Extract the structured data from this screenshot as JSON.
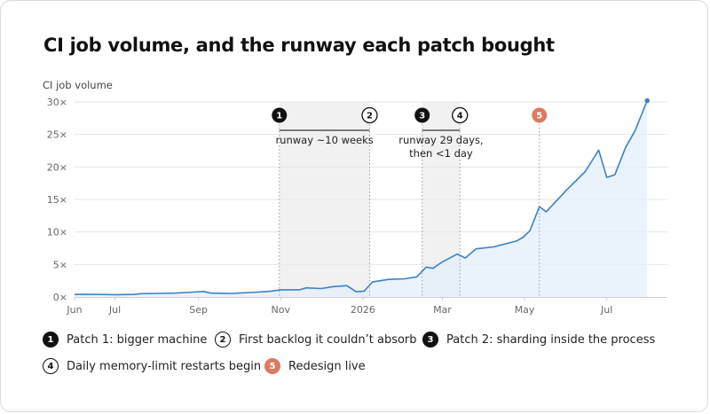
{
  "title": "CI job volume, and the runway each patch bought",
  "chart_data": {
    "type": "area",
    "ylabel": "CI job volume",
    "y_unit": "×",
    "ylim": [
      0,
      30
    ],
    "yticks": [
      0,
      5,
      10,
      15,
      20,
      25,
      30
    ],
    "ytick_labels": [
      "0×",
      "5×",
      "10×",
      "15×",
      "20×",
      "25×",
      "30×"
    ],
    "xlim": [
      "2025-06-01",
      "2026-08-15"
    ],
    "xticks": [
      {
        "date": "2025-06-01",
        "label": "Jun"
      },
      {
        "date": "2025-07-01",
        "label": "Jul"
      },
      {
        "date": "2025-09-01",
        "label": "Sep"
      },
      {
        "date": "2025-11-01",
        "label": "Nov"
      },
      {
        "date": "2026-01-01",
        "label": "2026"
      },
      {
        "date": "2026-03-01",
        "label": "Mar"
      },
      {
        "date": "2026-05-01",
        "label": "May"
      },
      {
        "date": "2026-07-01",
        "label": "Jul"
      }
    ],
    "series": [
      {
        "color": "#3b82c4",
        "fill": "#e3eef9",
        "points": [
          [
            "2025-06-01",
            0.4
          ],
          [
            "2025-06-15",
            0.4
          ],
          [
            "2025-07-01",
            0.35
          ],
          [
            "2025-07-15",
            0.4
          ],
          [
            "2025-07-20",
            0.5
          ],
          [
            "2025-08-01",
            0.55
          ],
          [
            "2025-08-15",
            0.6
          ],
          [
            "2025-08-28",
            0.75
          ],
          [
            "2025-09-05",
            0.85
          ],
          [
            "2025-09-10",
            0.6
          ],
          [
            "2025-09-25",
            0.55
          ],
          [
            "2025-10-01",
            0.6
          ],
          [
            "2025-10-15",
            0.75
          ],
          [
            "2025-10-25",
            0.9
          ],
          [
            "2025-11-01",
            1.1
          ],
          [
            "2025-11-15",
            1.1
          ],
          [
            "2025-11-20",
            1.4
          ],
          [
            "2025-12-01",
            1.3
          ],
          [
            "2025-12-10",
            1.6
          ],
          [
            "2025-12-20",
            1.75
          ],
          [
            "2025-12-27",
            0.8
          ],
          [
            "2026-01-02",
            0.9
          ],
          [
            "2026-01-08",
            2.3
          ],
          [
            "2026-01-20",
            2.7
          ],
          [
            "2026-02-01",
            2.8
          ],
          [
            "2026-02-10",
            3.1
          ],
          [
            "2026-02-17",
            4.6
          ],
          [
            "2026-02-22",
            4.4
          ],
          [
            "2026-03-01",
            5.4
          ],
          [
            "2026-03-12",
            6.6
          ],
          [
            "2026-03-18",
            6.0
          ],
          [
            "2026-03-26",
            7.4
          ],
          [
            "2026-04-08",
            7.7
          ],
          [
            "2026-04-25",
            8.6
          ],
          [
            "2026-04-30",
            9.2
          ],
          [
            "2026-05-05",
            10.2
          ],
          [
            "2026-05-12",
            13.9
          ],
          [
            "2026-05-17",
            13.1
          ],
          [
            "2026-06-01",
            16.4
          ],
          [
            "2026-06-15",
            19.3
          ],
          [
            "2026-06-25",
            22.6
          ],
          [
            "2026-07-01",
            18.4
          ],
          [
            "2026-07-07",
            18.8
          ],
          [
            "2026-07-15",
            23.0
          ],
          [
            "2026-07-22",
            25.6
          ],
          [
            "2026-07-31",
            30.2
          ]
        ]
      }
    ],
    "events": [
      {
        "id": "1",
        "date": "2025-10-31",
        "style": "filled",
        "legend": "Patch 1: bigger machine"
      },
      {
        "id": "2",
        "date": "2026-01-06",
        "style": "outline",
        "legend": "First backlog it couldn’t absorb"
      },
      {
        "id": "3",
        "date": "2026-02-14",
        "style": "filled",
        "legend": "Patch 2: sharding inside the process"
      },
      {
        "id": "4",
        "date": "2026-03-14",
        "style": "outline",
        "legend": "Daily memory-limit restarts begin"
      },
      {
        "id": "5",
        "date": "2026-05-12",
        "style": "accent",
        "legend": "Redesign live"
      }
    ],
    "runways": [
      {
        "from": "2025-10-31",
        "to": "2026-01-06",
        "label_lines": [
          "runway ~10 weeks"
        ]
      },
      {
        "from": "2026-02-14",
        "to": "2026-03-14",
        "label_lines": [
          "runway 29 days,",
          "then <1 day"
        ]
      }
    ],
    "colors": {
      "line": "#3b82c4",
      "area_fill": "#e3eef9",
      "runway_shade": "#f1f1f1",
      "accent": "#d97b62",
      "grid": "#e6e6e6",
      "axis": "#cfcfcf",
      "text_muted": "#666666"
    }
  }
}
